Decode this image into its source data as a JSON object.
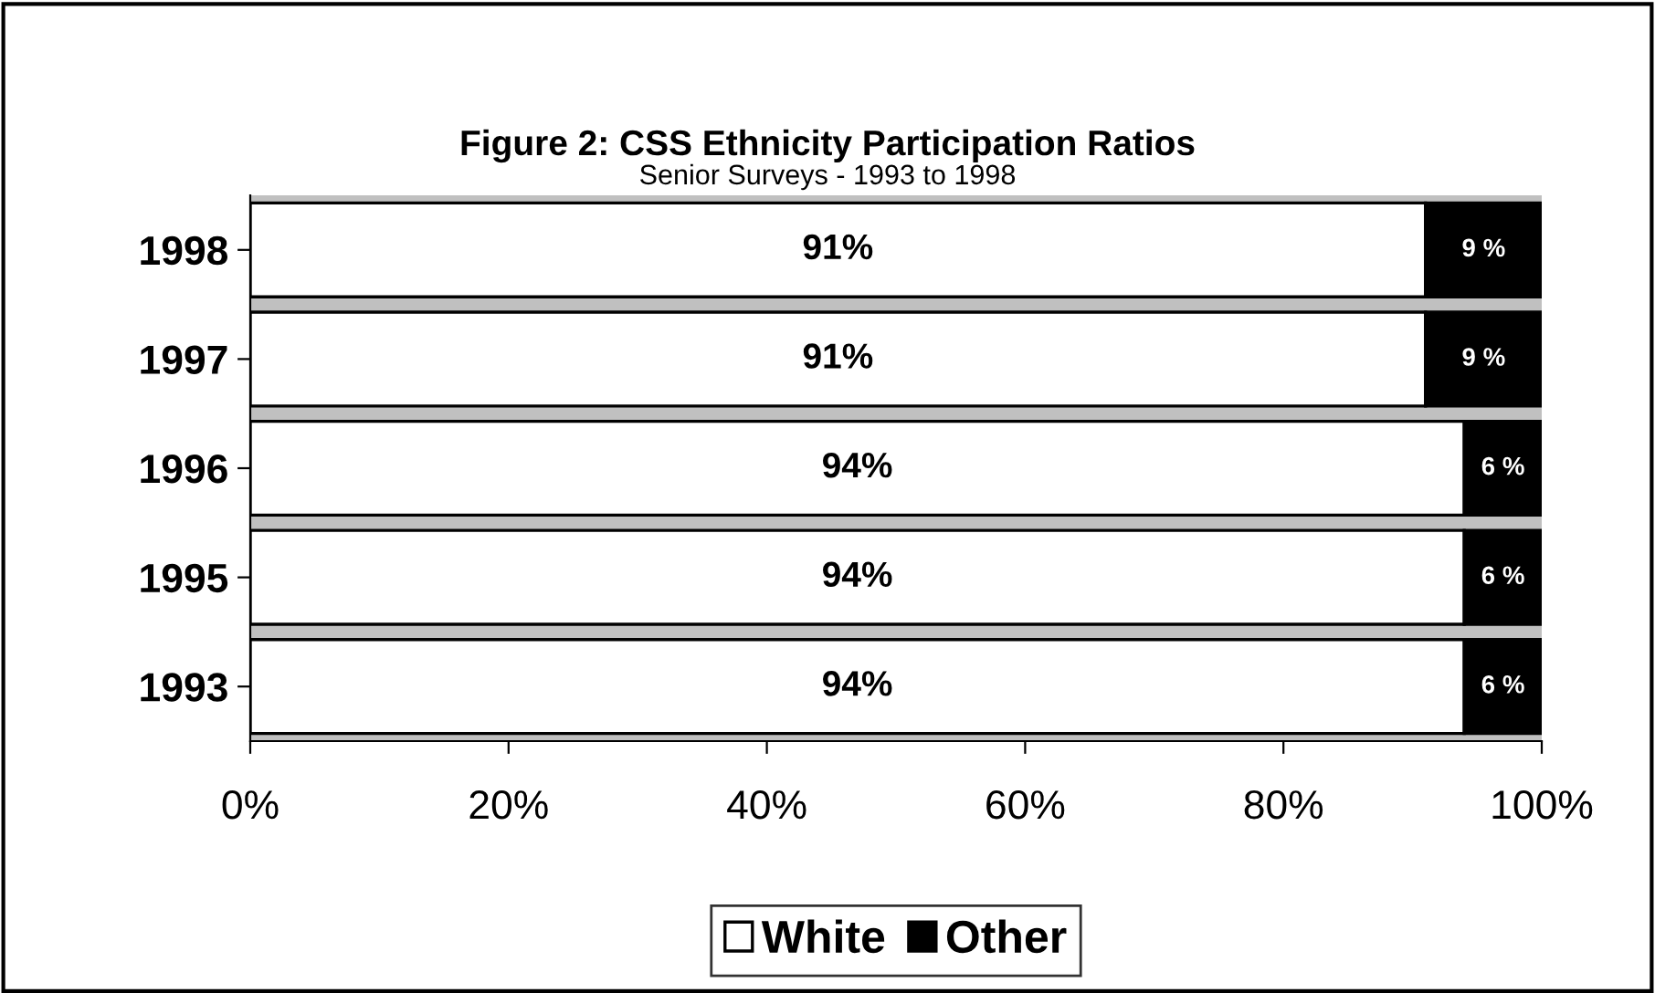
{
  "chart_data": {
    "type": "bar",
    "orientation": "horizontal",
    "stacked": true,
    "title": "Figure 2: CSS Ethnicity Participation Ratios",
    "subtitle": "Senior Surveys - 1993 to 1998",
    "categories": [
      "1998",
      "1997",
      "1996",
      "1995",
      "1993"
    ],
    "series": [
      {
        "name": "White",
        "color": "#ffffff",
        "values": [
          91,
          91,
          94,
          94,
          94
        ],
        "value_labels": [
          "91%",
          "91%",
          "94%",
          "94%",
          "94%"
        ]
      },
      {
        "name": "Other",
        "color": "#000000",
        "values": [
          9,
          9,
          6,
          6,
          6
        ],
        "value_labels": [
          "9 %",
          "9 %",
          "6 %",
          "6 %",
          "6 %"
        ]
      }
    ],
    "xlim": [
      0,
      100
    ],
    "xticks": [
      {
        "value": 0,
        "label": "0%"
      },
      {
        "value": 20,
        "label": "20%"
      },
      {
        "value": 40,
        "label": "40%"
      },
      {
        "value": 60,
        "label": "60%"
      },
      {
        "value": 80,
        "label": "80%"
      },
      {
        "value": 100,
        "label": "100%"
      }
    ],
    "grid": false,
    "legend": "bottom"
  }
}
